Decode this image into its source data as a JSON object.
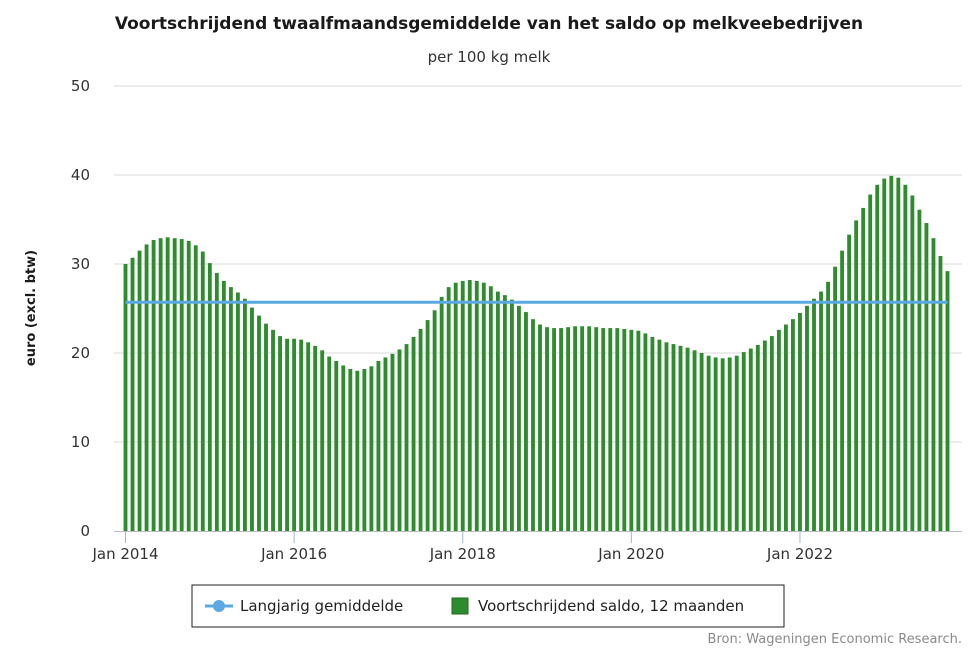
{
  "chart_data": {
    "type": "bar",
    "title": "Voortschrijdend twaalfmaandsgemiddelde van het saldo op melkveebedrijven",
    "subtitle": "per 100 kg melk",
    "ylabel": "euro (excl. btw)",
    "xlabel": "",
    "ylim": [
      0,
      50
    ],
    "yticks": [
      "0",
      "10",
      "20",
      "30",
      "40",
      "50"
    ],
    "xticks": [
      "Jan 2014",
      "Jan 2016",
      "Jan 2018",
      "Jan 2020",
      "Jan 2022"
    ],
    "start": "Jan 2014",
    "frequency": "monthly",
    "grid": true,
    "legend_position": "bottom-center",
    "series": [
      {
        "name": "Voortschrijdend saldo, 12 maanden",
        "type": "bar",
        "color": "#2e8b2e",
        "values": [
          30.0,
          30.7,
          31.5,
          32.2,
          32.7,
          32.9,
          33.0,
          32.9,
          32.8,
          32.6,
          32.1,
          31.4,
          30.1,
          29.0,
          28.1,
          27.4,
          26.8,
          26.1,
          25.1,
          24.2,
          23.3,
          22.6,
          21.9,
          21.6,
          21.6,
          21.5,
          21.2,
          20.8,
          20.3,
          19.6,
          19.1,
          18.6,
          18.2,
          18.0,
          18.2,
          18.5,
          19.1,
          19.5,
          19.9,
          20.4,
          21.0,
          21.8,
          22.7,
          23.7,
          24.8,
          26.3,
          27.4,
          27.9,
          28.1,
          28.2,
          28.1,
          27.9,
          27.5,
          26.9,
          26.5,
          26.0,
          25.3,
          24.6,
          23.8,
          23.2,
          22.9,
          22.8,
          22.8,
          22.9,
          23.0,
          23.0,
          23.0,
          22.9,
          22.8,
          22.8,
          22.8,
          22.7,
          22.6,
          22.5,
          22.2,
          21.8,
          21.5,
          21.2,
          21.0,
          20.8,
          20.6,
          20.3,
          20.0,
          19.7,
          19.5,
          19.4,
          19.5,
          19.7,
          20.1,
          20.5,
          20.9,
          21.4,
          21.9,
          22.6,
          23.2,
          23.8,
          24.5,
          25.3,
          26.1,
          26.9,
          28.0,
          29.7,
          31.5,
          33.3,
          34.9,
          36.3,
          37.8,
          38.9,
          39.6,
          39.9,
          39.7,
          38.9,
          37.7,
          36.1,
          34.6,
          32.9,
          30.9,
          29.2
        ]
      },
      {
        "name": "Langjarig gemiddelde",
        "type": "line",
        "color": "#5aa9e0",
        "value": 25.7
      }
    ]
  },
  "credit": "Bron: Wageningen Economic Research."
}
